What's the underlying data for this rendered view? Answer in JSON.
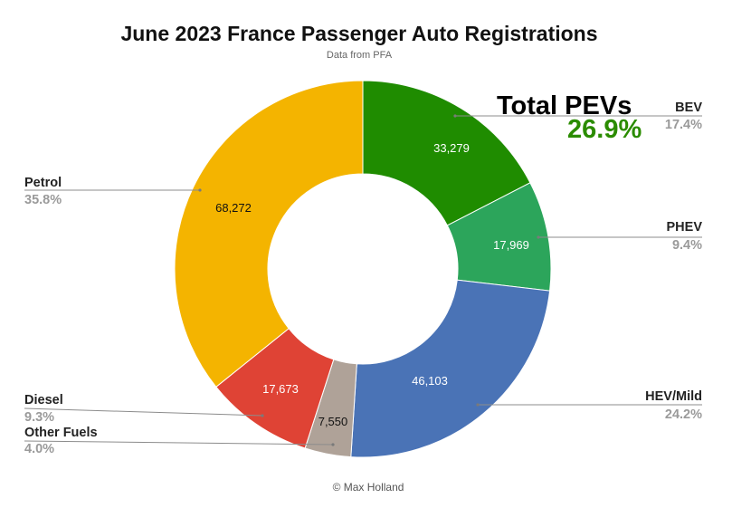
{
  "chart_data": {
    "type": "pie",
    "variant": "donut",
    "title": "June 2023 France Passenger Auto Registrations",
    "subtitle": "Data from PFA",
    "start": "top",
    "direction": "clockwise",
    "legend_placement": "outside",
    "slices": [
      {
        "name": "BEV",
        "value": 33279,
        "percent": "17.4%",
        "color": "#1f8c00",
        "label_color": "#ffffff"
      },
      {
        "name": "PHEV",
        "value": 17969,
        "percent": "9.4%",
        "color": "#2ca55b",
        "label_color": "#ffffff"
      },
      {
        "name": "HEV/Mild",
        "value": 46103,
        "percent": "24.2%",
        "color": "#4a73b6",
        "label_color": "#ffffff"
      },
      {
        "name": "Other Fuels",
        "value": 7550,
        "percent": "4.0%",
        "color": "#afa298",
        "label_color": "#111111"
      },
      {
        "name": "Diesel",
        "value": 17673,
        "percent": "9.3%",
        "color": "#df4335",
        "label_color": "#ffffff"
      },
      {
        "name": "Petrol",
        "value": 68272,
        "percent": "35.8%",
        "color": "#f4b400",
        "label_color": "#111111"
      }
    ],
    "annotation": {
      "label": "Total PEVs",
      "value": "26.9%",
      "color": "#2b8c00"
    }
  },
  "credit": "© Max Holland"
}
